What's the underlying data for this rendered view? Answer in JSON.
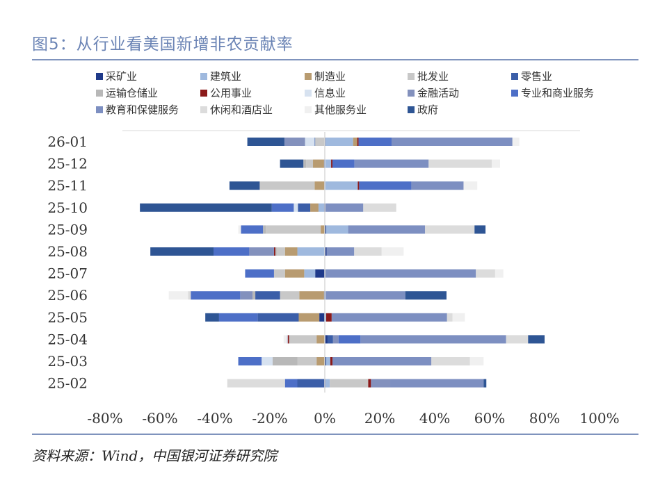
{
  "figure": {
    "title": "图5：从行业看美国新增非农贡献率",
    "source": "资料来源：Wind，中国银河证券研究院"
  },
  "chart_data": {
    "type": "bar",
    "stacked": true,
    "orientation": "horizontal",
    "title": "",
    "xlabel": "",
    "ylabel": "",
    "xlim": [
      -0.8,
      1.0
    ],
    "xticks": [
      -0.8,
      -0.6,
      -0.4,
      -0.2,
      0,
      0.2,
      0.4,
      0.6,
      0.8,
      1.0
    ],
    "xtick_labels": [
      "-80%",
      "-60%",
      "-40%",
      "-20%",
      "0%",
      "20%",
      "40%",
      "60%",
      "80%",
      "100%"
    ],
    "legend_position": "top",
    "categories": [
      "26-01",
      "25-12",
      "25-11",
      "25-10",
      "25-09",
      "25-08",
      "25-07",
      "25-06",
      "25-05",
      "25-04",
      "25-03",
      "25-02"
    ],
    "series": [
      {
        "name": "采矿业",
        "color": "#1f3a8a",
        "values": [
          0.003,
          -0.003,
          -0.002,
          -0.003,
          0.005,
          0.007,
          -0.035,
          -0.003,
          -0.02,
          0.01,
          0.005,
          0.003
        ]
      },
      {
        "name": "建筑业",
        "color": "#9fb9de",
        "values": [
          0.1,
          0.023,
          0.12,
          -0.02,
          0.08,
          -0.1,
          -0.04,
          0.003,
          0.005,
          0.0,
          0.015,
          0.015
        ]
      },
      {
        "name": "制造业",
        "color": "#b89b70",
        "values": [
          0.015,
          -0.04,
          -0.035,
          -0.03,
          -0.015,
          -0.045,
          -0.07,
          -0.09,
          -0.075,
          -0.03,
          -0.03,
          0.0
        ]
      },
      {
        "name": "批发业",
        "color": "#c8c8c8",
        "values": [
          -0.035,
          -0.025,
          -0.2,
          0.0,
          -0.2,
          -0.03,
          -0.04,
          -0.07,
          0.0,
          -0.1,
          -0.07,
          0.14
        ]
      },
      {
        "name": "零售业",
        "color": "#3b5ea8",
        "values": [
          -0.002,
          0.0,
          0.0,
          -0.045,
          0.0,
          0.0,
          0.0,
          -0.09,
          -0.15,
          0.02,
          0.0,
          -0.1
        ]
      },
      {
        "name": "运输仓储业",
        "color": "#b8b8b8",
        "values": [
          0.0,
          -0.01,
          0.0,
          0.0,
          -0.01,
          -0.005,
          0.0,
          -0.01,
          0.0,
          0.0,
          -0.09,
          0.0
        ]
      },
      {
        "name": "公用事业",
        "color": "#8b1a1a",
        "values": [
          0.005,
          0.005,
          0.005,
          0.0,
          0.0,
          -0.005,
          0.0,
          0.0,
          0.02,
          -0.005,
          0.008,
          0.01
        ]
      },
      {
        "name": "信息业",
        "color": "#d7e2f0",
        "values": [
          -0.035,
          0.0,
          0.0,
          -0.015,
          0.0,
          0.0,
          0.0,
          0.0,
          0.0,
          -0.005,
          -0.04,
          0.0
        ]
      },
      {
        "name": "金融活动",
        "color": "#8391bd",
        "values": [
          -0.075,
          0.0,
          0.0,
          0.0,
          0.0,
          -0.09,
          0.0,
          -0.045,
          0.0,
          0.02,
          0.0,
          0.07
        ]
      },
      {
        "name": "专业和商业服务",
        "color": "#4d6fc7",
        "values": [
          0.12,
          0.08,
          0.19,
          -0.08,
          -0.08,
          -0.13,
          -0.105,
          -0.18,
          -0.14,
          0.08,
          -0.085,
          -0.045
        ]
      },
      {
        "name": "教育和保健服务",
        "color": "#7d8fc1",
        "values": [
          0.44,
          0.27,
          0.19,
          0.14,
          0.28,
          0.1,
          0.55,
          0.29,
          0.42,
          0.53,
          0.36,
          0.34
        ]
      },
      {
        "name": "休闲和酒店业",
        "color": "#dcdcdc",
        "values": [
          0.0,
          0.23,
          0.0,
          0.12,
          0.18,
          0.1,
          0.07,
          -0.01,
          0.02,
          0.08,
          0.14,
          -0.21
        ]
      },
      {
        "name": "其他服务业",
        "color": "#f0f0f0",
        "values": [
          0.025,
          0.03,
          0.05,
          0.0,
          -0.01,
          0.08,
          0.03,
          -0.07,
          0.045,
          -0.01,
          0.05,
          0.0
        ]
      },
      {
        "name": "政府",
        "color": "#2e5594",
        "values": [
          -0.135,
          -0.085,
          -0.11,
          -0.48,
          0.04,
          -0.23,
          0.0,
          0.15,
          -0.05,
          0.06,
          0.0,
          0.01
        ]
      }
    ]
  }
}
